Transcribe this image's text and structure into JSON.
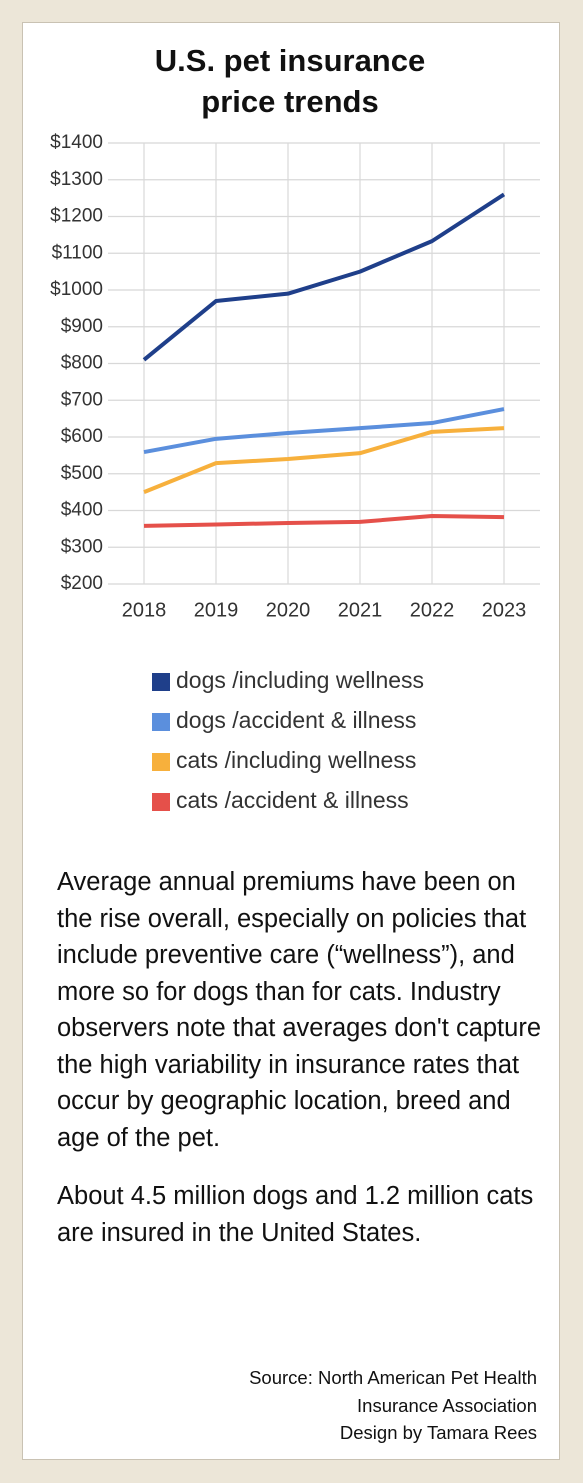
{
  "chart_data": {
    "type": "line",
    "title": "U.S. pet insurance price trends",
    "x": [
      2018,
      2019,
      2020,
      2021,
      2022,
      2023
    ],
    "xlim": [
      2017.5,
      2023.5
    ],
    "xticks": [
      2018,
      2019,
      2020,
      2021,
      2022,
      2023
    ],
    "ylim": [
      200,
      1400
    ],
    "yticks": [
      {
        "value": 200,
        "label": "$200"
      },
      {
        "value": 300,
        "label": "$300"
      },
      {
        "value": 400,
        "label": "$400"
      },
      {
        "value": 500,
        "label": "$500"
      },
      {
        "value": 600,
        "label": "$600"
      },
      {
        "value": 700,
        "label": "$700"
      },
      {
        "value": 800,
        "label": "$800"
      },
      {
        "value": 900,
        "label": "$900"
      },
      {
        "value": 1000,
        "label": "$1000"
      },
      {
        "value": 1100,
        "label": "$1100"
      },
      {
        "value": 1200,
        "label": "$1200"
      },
      {
        "value": 1300,
        "label": "$1300"
      },
      {
        "value": 1400,
        "label": "$1400"
      }
    ],
    "grid": true,
    "series": [
      {
        "name": "dogs /including wellness",
        "color": "#1f3f8a",
        "values": [
          810,
          970,
          990,
          1050,
          1133,
          1260
        ]
      },
      {
        "name": "dogs /accident & illness",
        "color": "#5b8fdd",
        "values": [
          559,
          595,
          611,
          624,
          638,
          676
        ]
      },
      {
        "name": "cats /including wellness",
        "color": "#f7b03c",
        "values": [
          450,
          529,
          540,
          556,
          614,
          624
        ]
      },
      {
        "name": "cats /accident & illness",
        "color": "#e5504a",
        "values": [
          358,
          362,
          366,
          369,
          385,
          382
        ]
      }
    ]
  },
  "text": {
    "paragraphs": [
      "Average annual premiums have been on the rise overall, especially on policies that include preventive care (“wellness”), and more so for dogs than for cats. Industry observers note that averages don't capture the high variability in insurance rates that occur by geographic location, breed and age of the pet.",
      "About 4.5 million dogs and 1.2 million cats are insured in the United States."
    ],
    "source": [
      "Source: North American Pet Health",
      "Insurance Association",
      "Design by Tamara Rees"
    ]
  }
}
